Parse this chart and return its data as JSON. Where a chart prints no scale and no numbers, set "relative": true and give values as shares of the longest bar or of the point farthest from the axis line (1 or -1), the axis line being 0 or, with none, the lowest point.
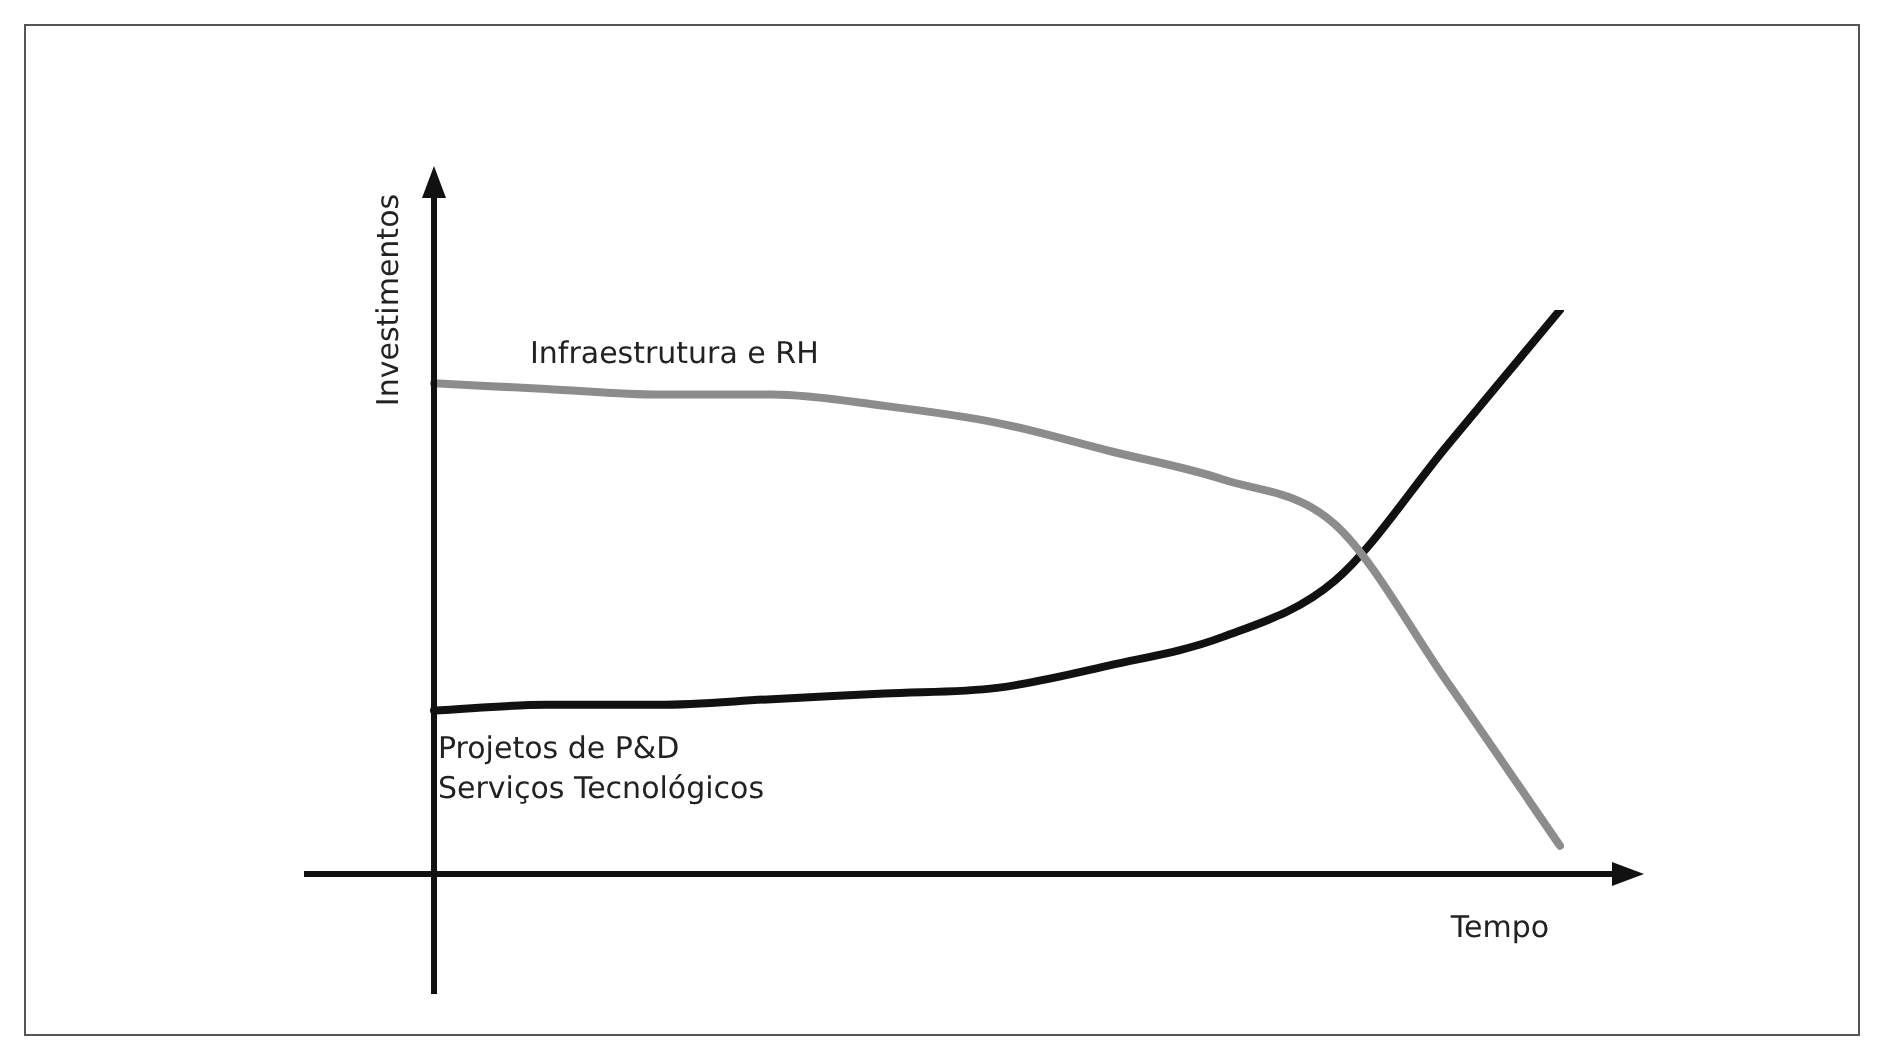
{
  "chart_data": {
    "type": "line",
    "relative": true,
    "xlabel": "Tempo",
    "ylabel": "Investimentos",
    "legend": false,
    "marker": "none",
    "line_style": "solid",
    "categories": [
      null,
      null,
      null,
      null,
      null,
      null,
      null,
      null,
      null,
      null,
      null
    ],
    "series": [
      {
        "name": "Infraestrutura e RH",
        "color": "#8c8c8c",
        "values": [
          0.87,
          0.86,
          0.85,
          0.85,
          0.83,
          0.8,
          0.75,
          0.7,
          0.62,
          0.34,
          0.05
        ]
      },
      {
        "name": "Projetos de P&D\nServiços Tecnológicos",
        "color": "#111111",
        "values": [
          0.29,
          0.3,
          0.3,
          0.31,
          0.32,
          0.33,
          0.37,
          0.42,
          0.52,
          0.76,
          1
        ]
      }
    ]
  }
}
